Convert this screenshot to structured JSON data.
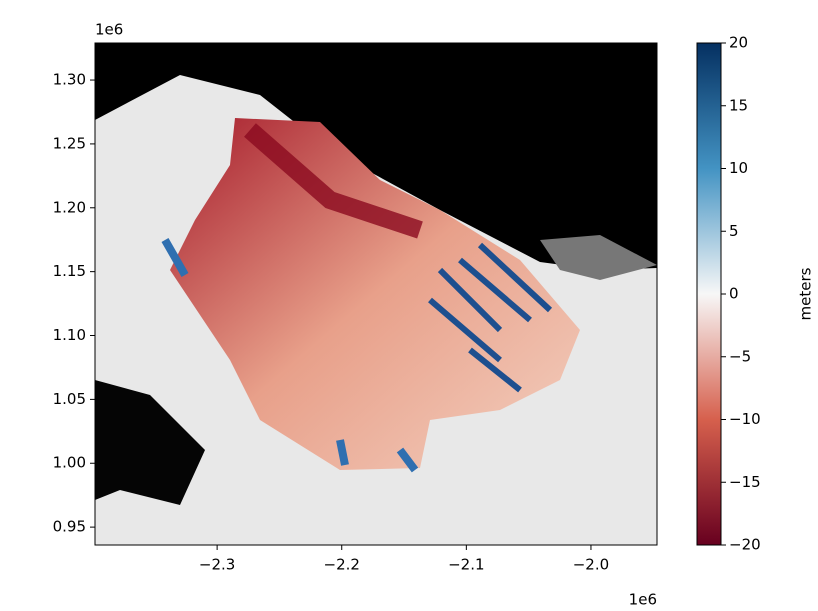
{
  "chart_data": {
    "type": "image",
    "x_offset_label": "1e6",
    "y_offset_label": "1e6",
    "xlim": [
      -2.398,
      -1.947
    ],
    "xticks": [
      {
        "value": -2.3,
        "label": "−2.3"
      },
      {
        "value": -2.2,
        "label": "−2.2"
      },
      {
        "value": -2.1,
        "label": "−2.1"
      },
      {
        "value": -2.0,
        "label": "−2.0"
      }
    ],
    "ylim": [
      0.936,
      1.329
    ],
    "yticks": [
      {
        "value": 0.95,
        "label": "0.95"
      },
      {
        "value": 1.0,
        "label": "1.00"
      },
      {
        "value": 1.05,
        "label": "1.05"
      },
      {
        "value": 1.1,
        "label": "1.10"
      },
      {
        "value": 1.15,
        "label": "1.15"
      },
      {
        "value": 1.2,
        "label": "1.20"
      },
      {
        "value": 1.25,
        "label": "1.25"
      },
      {
        "value": 1.3,
        "label": "1.30"
      }
    ],
    "colorbar": {
      "label": "meters",
      "cmap": "RdBu",
      "colors": [
        "#67001f",
        "#d6604d",
        "#f7f7f7",
        "#4393c3",
        "#053061"
      ],
      "clim": [
        -20,
        20
      ],
      "ticks": [
        {
          "value": -20,
          "label": "−20"
        },
        {
          "value": -15,
          "label": "−15"
        },
        {
          "value": -10,
          "label": "−10"
        },
        {
          "value": -5,
          "label": "−5"
        },
        0,
        5,
        10,
        15,
        20
      ]
    }
  }
}
